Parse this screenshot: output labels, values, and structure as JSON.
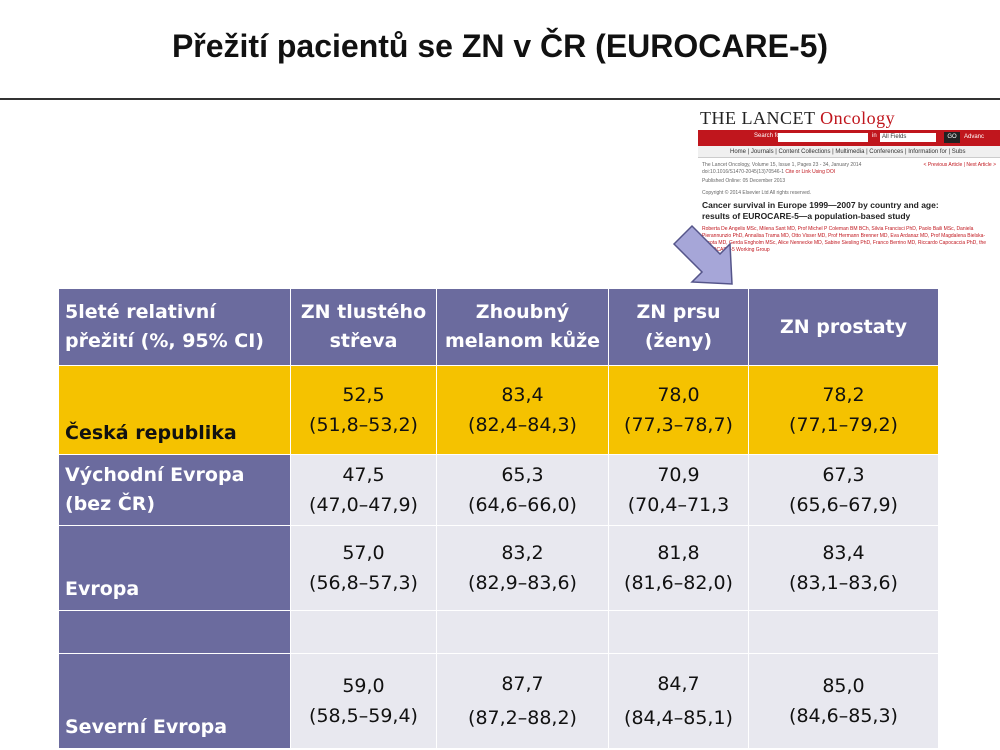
{
  "title": "Přežití pacientů se ZN v ČR (EUROCARE-5)",
  "lancet": {
    "brand_main": "THE LANCET",
    "brand_sub": "Oncology",
    "search_label": "Search for",
    "search_in": "in",
    "search_scope": "All Fields",
    "go_label": "GO",
    "advanced_label": "Advanc",
    "nav": "Home | Journals | Content Collections | Multimedia | Conferences | Information for | Subs",
    "meta_line1": "The Lancet Oncology, Volume 15, Issue 1, Pages 23 - 34, January 2014",
    "meta_line2": "doi:10.1016/S1470-2045(13)70546-1",
    "meta_link": "Cite or Link Using DOI",
    "meta_nav": "< Previous Article | Next Article >",
    "published": "Published Online: 05 December 2013",
    "copyright": "Copyright © 2014 Elsevier Ltd All rights reserved.",
    "headline": "Cancer survival in Europe 1999—2007 by country and age: results of EUROCARE-5—a population-based study",
    "authors": "Roberta De Angelis MSc, Milena Sant MD, Prof Michel P Coleman BM BCh, Silvia Francisci PhD, Paolo Baili MSc, Daniela Pierannunzio PhD, Annalisa Trama MD, Otto Visser MD, Prof Hermann Brenner MD, Eva Ardanaz MD, Prof Magdalena Bielska-Lasota MD, Gerda Engholm MSc, Alice Nennecke MD, Sabine Siesling PhD, Franco Berrino MD, Riccardo Capocaccia PhD, the EUROCARE-5 Working Group"
  },
  "table": {
    "header": [
      "5leté relativní přežití (%, 95% CI)",
      "ZN tlustého střeva",
      "Zhoubný melanom kůže",
      "ZN prsu (ženy)",
      "ZN prostaty"
    ],
    "rows": [
      {
        "label": "Česká republika",
        "cells": [
          [
            "52,5",
            "(51,8–53,2)"
          ],
          [
            "83,4",
            "(82,4–84,3)"
          ],
          [
            "78,0",
            "(77,3–78,7)"
          ],
          [
            "78,2",
            "(77,1–79,2)"
          ]
        ]
      },
      {
        "label": "Východní Evropa (bez ČR)",
        "cells": [
          [
            "47,5",
            "(47,0–47,9)"
          ],
          [
            "65,3",
            "(64,6–66,0)"
          ],
          [
            "70,9",
            "(70,4–71,3"
          ],
          [
            "67,3",
            "(65,6–67,9)"
          ]
        ]
      },
      {
        "label": "Evropa",
        "cells": [
          [
            "57,0",
            "(56,8–57,3)"
          ],
          [
            "83,2",
            "(82,9–83,6)"
          ],
          [
            "81,8",
            "(81,6–82,0)"
          ],
          [
            "83,4",
            "(83,1–83,6)"
          ]
        ]
      },
      {
        "label": "",
        "cells": [
          [
            "",
            ""
          ],
          [
            "",
            ""
          ],
          [
            "",
            ""
          ],
          [
            "",
            ""
          ]
        ]
      },
      {
        "label": "Severní Evropa",
        "cells": [
          [
            "59,0",
            "(58,5–59,4)"
          ],
          [
            "87,7",
            "(87,2–88,2)"
          ],
          [
            "84,7",
            "(84,4–85,1)"
          ],
          [
            "85,0",
            "(84,6–85,3)"
          ]
        ]
      }
    ]
  }
}
